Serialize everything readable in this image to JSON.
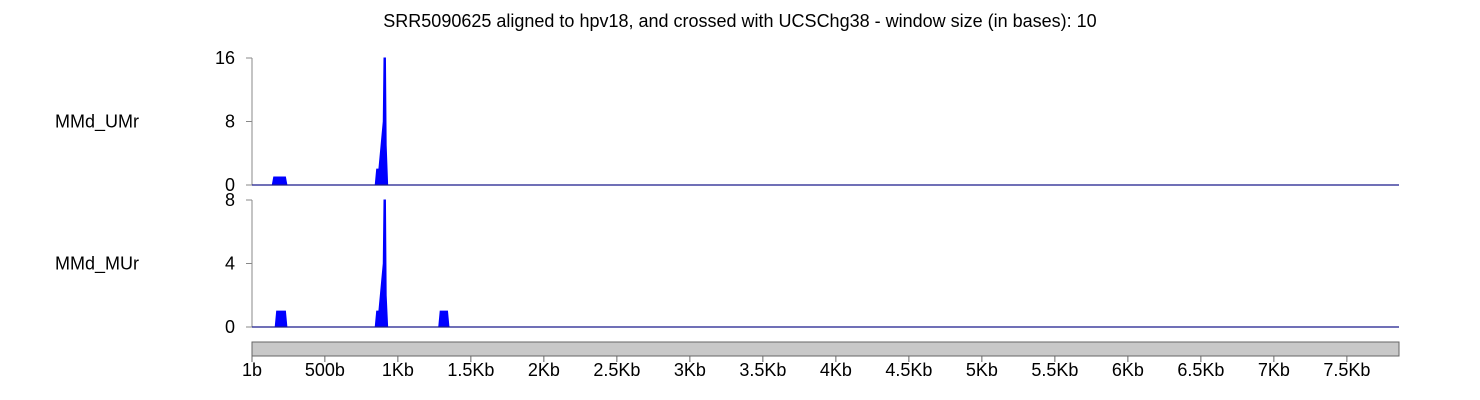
{
  "chart_data": {
    "type": "area",
    "title": "SRR5090625 aligned to hpv18, and crossed with UCSChg38 - window size (in bases):  10",
    "x_axis": {
      "range": [
        1,
        7857
      ],
      "ticks": [
        {
          "value": 1,
          "label": "1b"
        },
        {
          "value": 500,
          "label": "500b"
        },
        {
          "value": 1000,
          "label": "1Kb"
        },
        {
          "value": 1500,
          "label": "1.5Kb"
        },
        {
          "value": 2000,
          "label": "2Kb"
        },
        {
          "value": 2500,
          "label": "2.5Kb"
        },
        {
          "value": 3000,
          "label": "3Kb"
        },
        {
          "value": 3500,
          "label": "3.5Kb"
        },
        {
          "value": 4000,
          "label": "4Kb"
        },
        {
          "value": 4500,
          "label": "4.5Kb"
        },
        {
          "value": 5000,
          "label": "5Kb"
        },
        {
          "value": 5500,
          "label": "5.5Kb"
        },
        {
          "value": 6000,
          "label": "6Kb"
        },
        {
          "value": 6500,
          "label": "6.5Kb"
        },
        {
          "value": 7000,
          "label": "7Kb"
        },
        {
          "value": 7500,
          "label": "7.5Kb"
        }
      ]
    },
    "tracks": [
      {
        "name": "MMd_UMr",
        "ylim": [
          0,
          16
        ],
        "yticks": [
          0,
          8,
          16
        ],
        "color": "#0000ff",
        "points": [
          [
            1,
            0
          ],
          [
            140,
            0
          ],
          [
            150,
            1
          ],
          [
            230,
            1
          ],
          [
            240,
            0
          ],
          [
            845,
            0
          ],
          [
            855,
            2
          ],
          [
            870,
            2
          ],
          [
            890,
            6
          ],
          [
            900,
            8
          ],
          [
            905,
            16
          ],
          [
            915,
            16
          ],
          [
            920,
            5
          ],
          [
            930,
            0
          ],
          [
            7857,
            0
          ]
        ]
      },
      {
        "name": "MMd_MUr",
        "ylim": [
          0,
          8
        ],
        "yticks": [
          0,
          4,
          8
        ],
        "color": "#0000ff",
        "points": [
          [
            1,
            0
          ],
          [
            160,
            0
          ],
          [
            170,
            1
          ],
          [
            230,
            1
          ],
          [
            240,
            0
          ],
          [
            845,
            0
          ],
          [
            855,
            1
          ],
          [
            870,
            1
          ],
          [
            890,
            3
          ],
          [
            900,
            4
          ],
          [
            905,
            8
          ],
          [
            915,
            8
          ],
          [
            920,
            2
          ],
          [
            930,
            0
          ],
          [
            1280,
            0
          ],
          [
            1290,
            1
          ],
          [
            1340,
            1
          ],
          [
            1350,
            0
          ],
          [
            7857,
            0
          ]
        ]
      }
    ],
    "grid": false,
    "legend": "none"
  }
}
